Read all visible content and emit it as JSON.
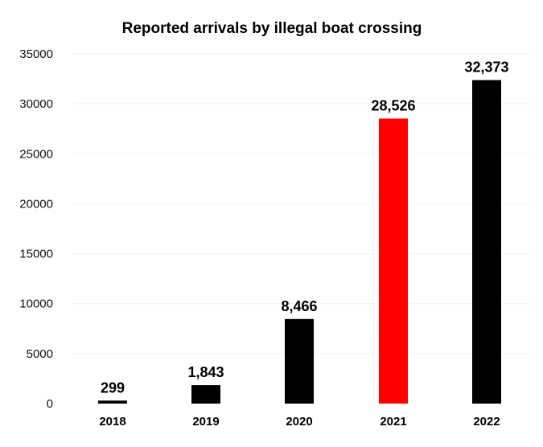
{
  "chart_data": {
    "type": "bar",
    "title": "Reported arrivals by illegal boat crossing",
    "xlabel": "",
    "ylabel": "",
    "categories": [
      "2018",
      "2019",
      "2020",
      "2021",
      "2022"
    ],
    "values": [
      299,
      1843,
      8466,
      28526,
      32373
    ],
    "value_labels": [
      "299",
      "1,843",
      "8,466",
      "28,526",
      "32,373"
    ],
    "bar_colors": [
      "#000000",
      "#000000",
      "#000000",
      "#ff0000",
      "#000000"
    ],
    "ylim": [
      0,
      35000
    ],
    "yticks": [
      "0",
      "5000",
      "10000",
      "15000",
      "20000",
      "25000",
      "30000",
      "35000"
    ],
    "grid": true,
    "legend": "none"
  }
}
